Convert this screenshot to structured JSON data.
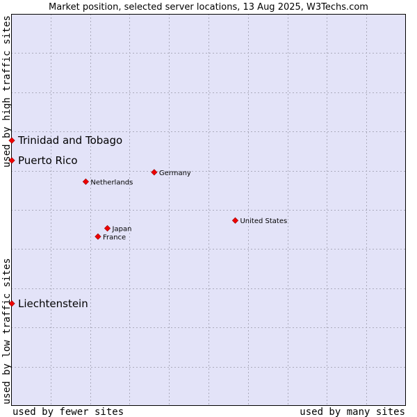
{
  "chart_data": {
    "type": "scatter",
    "title": "Market position, selected server locations, 13 Aug 2025, W3Techs.com",
    "xlabel_left": "used by fewer sites",
    "xlabel_right": "used by many sites",
    "ylabel_bottom": "used by low traffic sites",
    "ylabel_top": "used by high traffic sites",
    "xlim": [
      0,
      100
    ],
    "ylim": [
      0,
      100
    ],
    "grid": true,
    "colors": {
      "background": "#e3e3f8",
      "point": "#ee0000",
      "grid": "#aaaabb"
    },
    "points": [
      {
        "name": "Trinidad and Tobago",
        "x": 0.0,
        "y": 67.7,
        "highlight": true
      },
      {
        "name": "Puerto Rico",
        "x": 0.0,
        "y": 62.6,
        "highlight": true
      },
      {
        "name": "Germany",
        "x": 36.2,
        "y": 59.6,
        "highlight": false
      },
      {
        "name": "Netherlands",
        "x": 18.8,
        "y": 57.2,
        "highlight": false
      },
      {
        "name": "United States",
        "x": 56.8,
        "y": 47.3,
        "highlight": false
      },
      {
        "name": "Japan",
        "x": 24.3,
        "y": 45.3,
        "highlight": false
      },
      {
        "name": "France",
        "x": 21.9,
        "y": 43.2,
        "highlight": false
      },
      {
        "name": "Liechtenstein",
        "x": 0.0,
        "y": 26.1,
        "highlight": true
      }
    ]
  }
}
